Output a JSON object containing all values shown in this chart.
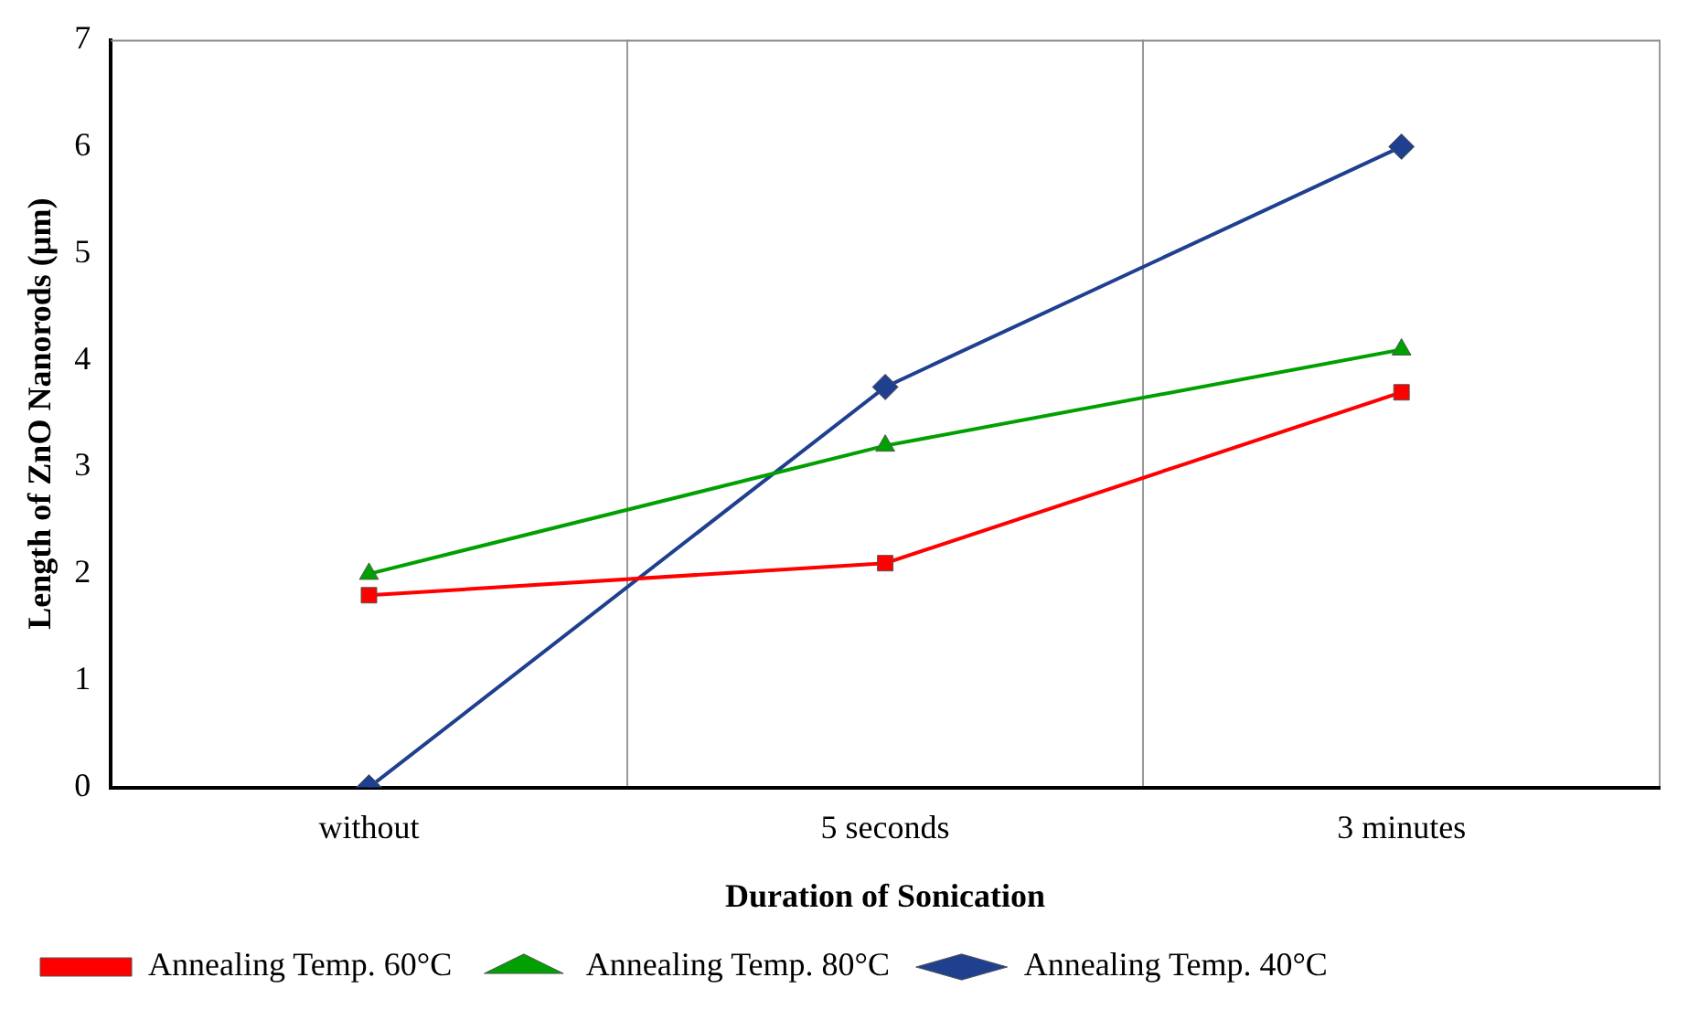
{
  "chart_data": {
    "type": "line",
    "xlabel": "Duration of Sonication",
    "ylabel": "Length of ZnO Nanorods (µm)",
    "categories": [
      "without",
      "5 seconds",
      "3 minutes"
    ],
    "series": [
      {
        "name": "Annealing Temp. 60°C",
        "color": "#ff0000",
        "marker": "square",
        "values": [
          1.8,
          2.1,
          3.7
        ]
      },
      {
        "name": "Annealing Temp. 80°C",
        "color": "#00a000",
        "marker": "triangle",
        "values": [
          2.0,
          3.2,
          4.1
        ]
      },
      {
        "name": "Annealing Temp. 40°C",
        "color": "#1f3f8f",
        "marker": "diamond",
        "values": [
          0,
          3.75,
          6
        ]
      }
    ],
    "ylim": [
      0,
      7
    ],
    "yticks": [
      0,
      1,
      2,
      3,
      4,
      5,
      6,
      7
    ],
    "grid": "x",
    "legend": "bottom"
  }
}
